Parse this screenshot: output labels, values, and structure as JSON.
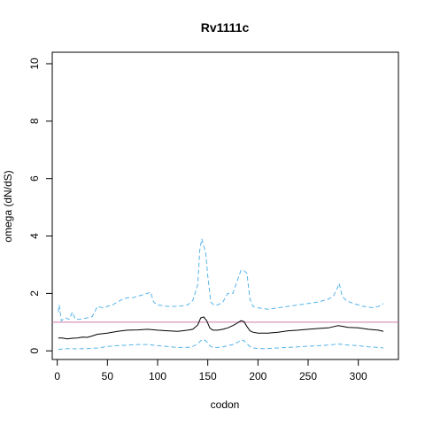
{
  "chart_data": {
    "type": "line",
    "title": "Rv1111c",
    "xlabel": "codon",
    "ylabel": "omega (dN/dS)",
    "xlim": [
      -5,
      340
    ],
    "ylim": [
      -0.3,
      10.4
    ],
    "xticks": [
      0,
      50,
      100,
      150,
      200,
      250,
      300
    ],
    "yticks": [
      0,
      2,
      4,
      6,
      8,
      10
    ],
    "grid": false,
    "legend": "none",
    "reference_line": {
      "y": 1.0,
      "color": "#cc79a7"
    },
    "series": [
      {
        "role": "estimate",
        "color": "#000000",
        "dash": "solid",
        "x": [
          1,
          5,
          10,
          15,
          20,
          25,
          30,
          35,
          40,
          50,
          60,
          70,
          80,
          90,
          100,
          110,
          120,
          130,
          135,
          140,
          143,
          146,
          149,
          152,
          155,
          160,
          165,
          170,
          175,
          180,
          183,
          186,
          189,
          192,
          195,
          200,
          210,
          220,
          230,
          240,
          250,
          260,
          270,
          280,
          285,
          290,
          300,
          310,
          320,
          325
        ],
        "y": [
          0.45,
          0.45,
          0.42,
          0.44,
          0.45,
          0.48,
          0.47,
          0.52,
          0.58,
          0.62,
          0.68,
          0.72,
          0.73,
          0.75,
          0.72,
          0.7,
          0.68,
          0.72,
          0.75,
          0.9,
          1.15,
          1.18,
          1.05,
          0.8,
          0.72,
          0.72,
          0.75,
          0.8,
          0.88,
          0.98,
          1.05,
          1.02,
          0.85,
          0.7,
          0.65,
          0.62,
          0.62,
          0.65,
          0.7,
          0.72,
          0.75,
          0.78,
          0.8,
          0.88,
          0.85,
          0.82,
          0.8,
          0.75,
          0.72,
          0.68
        ]
      },
      {
        "role": "upper",
        "color": "#56b4e9",
        "dash": "dashed",
        "x": [
          1,
          2,
          4,
          6,
          8,
          12,
          15,
          18,
          22,
          30,
          35,
          40,
          45,
          50,
          55,
          60,
          65,
          70,
          75,
          80,
          85,
          90,
          93,
          96,
          100,
          110,
          120,
          130,
          135,
          140,
          142,
          144,
          146,
          148,
          150,
          153,
          156,
          160,
          165,
          170,
          175,
          180,
          183,
          186,
          189,
          192,
          195,
          200,
          210,
          220,
          230,
          240,
          250,
          260,
          270,
          275,
          278,
          281,
          284,
          288,
          295,
          305,
          315,
          320,
          325
        ],
        "y": [
          1.35,
          1.6,
          1.05,
          1.1,
          1.15,
          1.1,
          1.35,
          1.1,
          1.1,
          1.15,
          1.2,
          1.55,
          1.5,
          1.55,
          1.6,
          1.7,
          1.8,
          1.85,
          1.85,
          1.9,
          1.95,
          2.0,
          2.05,
          1.7,
          1.6,
          1.55,
          1.55,
          1.6,
          1.75,
          2.3,
          3.5,
          3.9,
          3.65,
          3.4,
          2.6,
          1.7,
          1.6,
          1.6,
          1.7,
          2.0,
          2.0,
          2.5,
          2.8,
          2.8,
          2.7,
          1.8,
          1.55,
          1.5,
          1.45,
          1.5,
          1.55,
          1.6,
          1.65,
          1.7,
          1.8,
          1.9,
          2.1,
          2.35,
          1.9,
          1.75,
          1.65,
          1.55,
          1.5,
          1.55,
          1.65
        ]
      },
      {
        "role": "lower",
        "color": "#56b4e9",
        "dash": "dashed",
        "x": [
          1,
          10,
          20,
          30,
          40,
          50,
          60,
          70,
          80,
          90,
          100,
          110,
          120,
          130,
          135,
          140,
          143,
          146,
          149,
          152,
          155,
          160,
          165,
          170,
          175,
          180,
          183,
          186,
          189,
          192,
          195,
          200,
          210,
          220,
          230,
          240,
          250,
          260,
          270,
          280,
          285,
          290,
          300,
          310,
          320,
          325
        ],
        "y": [
          0.05,
          0.08,
          0.07,
          0.08,
          0.1,
          0.15,
          0.18,
          0.2,
          0.22,
          0.22,
          0.18,
          0.15,
          0.12,
          0.12,
          0.15,
          0.25,
          0.35,
          0.4,
          0.32,
          0.18,
          0.12,
          0.12,
          0.14,
          0.18,
          0.22,
          0.3,
          0.38,
          0.36,
          0.25,
          0.15,
          0.1,
          0.08,
          0.08,
          0.1,
          0.12,
          0.14,
          0.16,
          0.18,
          0.2,
          0.24,
          0.22,
          0.2,
          0.18,
          0.14,
          0.12,
          0.1
        ]
      }
    ]
  }
}
